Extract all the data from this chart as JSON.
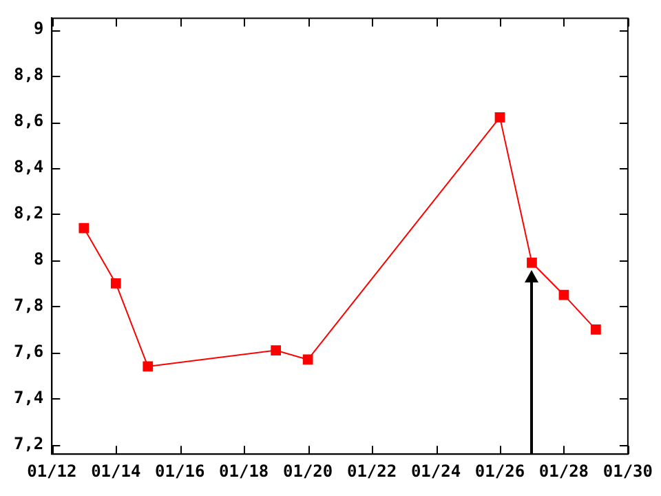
{
  "chart_data": {
    "type": "line",
    "x": [
      "--01-13",
      "--01-14",
      "--01-15",
      "--01-19",
      "--01-20",
      "--01-26",
      "--01-27",
      "--01-28",
      "--01-29"
    ],
    "series": [
      {
        "color": "#ff0000",
        "values": [
          8.14,
          7.9,
          7.54,
          7.61,
          7.57,
          8.62,
          7.99,
          7.85,
          7.7
        ]
      }
    ],
    "xlim": [
      "--01-12",
      "--01-30"
    ],
    "xticks": [
      {
        "value": "--01-12",
        "label": "01/12"
      },
      {
        "value": "--01-14",
        "label": "01/14"
      },
      {
        "value": "--01-16",
        "label": "01/16"
      },
      {
        "value": "--01-18",
        "label": "01/18"
      },
      {
        "value": "--01-20",
        "label": "01/20"
      },
      {
        "value": "--01-22",
        "label": "01/22"
      },
      {
        "value": "--01-24",
        "label": "01/24"
      },
      {
        "value": "--01-26",
        "label": "01/26"
      },
      {
        "value": "--01-28",
        "label": "01/28"
      },
      {
        "value": "--01-30",
        "label": "01/30"
      }
    ],
    "ylim": [
      7.16,
      9.05
    ],
    "yticks": [
      {
        "value": 7.2,
        "label": "7,2"
      },
      {
        "value": 7.4,
        "label": "7,4"
      },
      {
        "value": 7.6,
        "label": "7,6"
      },
      {
        "value": 7.8,
        "label": "7,8"
      },
      8,
      {
        "value": 8.2,
        "label": "8,2"
      },
      {
        "value": 8.4,
        "label": "8,4"
      },
      {
        "value": 8.6,
        "label": "8,6"
      },
      {
        "value": 8.8,
        "label": "8,8"
      },
      9
    ],
    "ref_lines": [
      {
        "axis": "x",
        "value": "--01-27",
        "color": "#000000"
      }
    ],
    "grid": false,
    "legend": false,
    "marker": "square",
    "line_style": "solid"
  }
}
